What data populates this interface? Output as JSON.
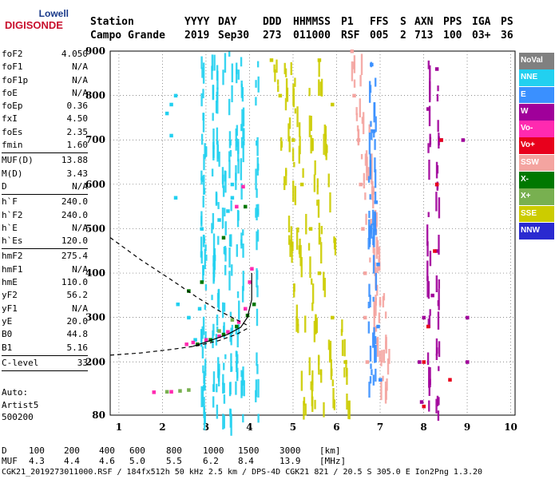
{
  "logo": {
    "top": "Lowell",
    "bottom": "DIGISONDE"
  },
  "header": {
    "labels": [
      "Station",
      "YYYY",
      "DAY",
      "DDD",
      "HHMMSS",
      "P1",
      "FFS",
      "S",
      "AXN",
      "PPS",
      "IGA",
      "PS"
    ],
    "values": [
      "Campo Grande",
      "2019",
      "Sep30",
      "273",
      "011000",
      "RSF",
      "005",
      "2",
      "713",
      "100",
      "03+",
      "36"
    ]
  },
  "params": [
    {
      "group": [
        [
          "foF2",
          "4.050"
        ],
        [
          "foF1",
          "N/A"
        ],
        [
          "foF1p",
          "N/A"
        ],
        [
          "foE",
          "N/A"
        ],
        [
          "foEp",
          "0.36"
        ],
        [
          "fxI",
          "4.50"
        ],
        [
          "foEs",
          "2.35"
        ],
        [
          "fmin",
          "1.60"
        ]
      ]
    },
    {
      "group": [
        [
          "MUF(D)",
          "13.88"
        ],
        [
          "M(D)",
          "3.43"
        ],
        [
          "D",
          "N/A"
        ]
      ]
    },
    {
      "group": [
        [
          "h`F",
          "240.0"
        ],
        [
          "h`F2",
          "240.0"
        ],
        [
          "h`E",
          "N/A"
        ],
        [
          "h`Es",
          "120.0"
        ]
      ]
    },
    {
      "group": [
        [
          "hmF2",
          "275.4"
        ],
        [
          "hmF1",
          "N/A"
        ],
        [
          "hmE",
          "110.0"
        ],
        [
          "yF2",
          "56.2"
        ],
        [
          "yF1",
          "N/A"
        ],
        [
          "yE",
          "20.0"
        ],
        [
          "B0",
          "44.8"
        ],
        [
          "B1",
          "5.16"
        ]
      ]
    },
    {
      "group": [
        [
          "C-level",
          "33"
        ]
      ]
    }
  ],
  "auto": [
    "Auto:",
    "Artist5",
    "500200"
  ],
  "legend": [
    {
      "label": "NoVal",
      "color": "#808080"
    },
    {
      "label": "NNE",
      "color": "#22d0f0"
    },
    {
      "label": "E",
      "color": "#3a90ff"
    },
    {
      "label": "W",
      "color": "#a0009a"
    },
    {
      "label": "Vo-",
      "color": "#ff2ab0"
    },
    {
      "label": "Vo+",
      "color": "#e8001c"
    },
    {
      "label": "SSW",
      "color": "#f4a4a0"
    },
    {
      "label": "X-",
      "color": "#007800"
    },
    {
      "label": "X+",
      "color": "#78b050"
    },
    {
      "label": "SSE",
      "color": "#cccc00"
    },
    {
      "label": "NNW",
      "color": "#2a2ad0"
    }
  ],
  "bottom": {
    "d_label": "D",
    "d_values": [
      "100",
      "200",
      "400",
      "600",
      "800",
      "1000",
      "1500",
      "3000",
      "[km]"
    ],
    "muf_label": "MUF",
    "muf_values": [
      "4.3",
      "4.4",
      "4.6",
      "5.0",
      "5.5",
      "6.2",
      "8.4",
      "13.9",
      "[MHz]"
    ]
  },
  "footer": "CGK21_2019273011000.RSF / 184fx512h 50 kHz 2.5 km / DPS-4D CGK21 821 / 20.5 S 305.0 E Ion2Png 1.3.20",
  "chart_data": {
    "type": "scatter",
    "title": "",
    "xlabel": "",
    "ylabel": "",
    "xlim": [
      0.8,
      10.1
    ],
    "ylim": [
      80,
      900
    ],
    "x_ticks": [
      1,
      2,
      3,
      4,
      5,
      6,
      7,
      8,
      9,
      10
    ],
    "y_ticks": [
      80,
      200,
      300,
      400,
      500,
      600,
      700,
      800,
      900
    ],
    "grid": true,
    "legend_placement": "right",
    "series": [
      {
        "name": "NNE",
        "points_mhz_km": [
          [
            2.75,
            250
          ],
          [
            2.85,
            320
          ],
          [
            2.9,
            500
          ],
          [
            3.3,
            520
          ],
          [
            3.5,
            540
          ],
          [
            3.6,
            570
          ],
          [
            2.3,
            800
          ],
          [
            2.2,
            780
          ],
          [
            2.1,
            760
          ],
          [
            2.2,
            710
          ],
          [
            2.3,
            570
          ],
          [
            2.35,
            330
          ],
          [
            2.6,
            300
          ],
          [
            3.6,
            600
          ]
        ]
      },
      {
        "name": "Vo-",
        "points_mhz_km": [
          [
            2.55,
            240
          ],
          [
            2.7,
            244
          ],
          [
            3.0,
            250
          ],
          [
            3.3,
            258
          ],
          [
            3.5,
            268
          ],
          [
            3.75,
            290
          ],
          [
            3.9,
            320
          ],
          [
            4.0,
            380
          ],
          [
            4.05,
            410
          ],
          [
            3.7,
            550
          ],
          [
            3.85,
            595
          ],
          [
            1.8,
            132
          ],
          [
            2.2,
            133
          ]
        ]
      },
      {
        "name": "X-",
        "points_mhz_km": [
          [
            2.8,
            240
          ],
          [
            3.1,
            250
          ],
          [
            3.4,
            262
          ],
          [
            3.7,
            280
          ],
          [
            3.95,
            305
          ],
          [
            4.1,
            330
          ],
          [
            2.6,
            360
          ],
          [
            2.9,
            380
          ],
          [
            3.4,
            480
          ],
          [
            3.9,
            550
          ]
        ]
      },
      {
        "name": "X+",
        "points_mhz_km": [
          [
            2.1,
            133
          ],
          [
            2.4,
            135
          ],
          [
            2.6,
            137
          ],
          [
            3.3,
            270
          ],
          [
            3.6,
            295
          ]
        ]
      },
      {
        "name": "SSE",
        "points_mhz_km": [
          [
            4.5,
            880
          ],
          [
            4.7,
            800
          ],
          [
            5.0,
            700
          ],
          [
            5.2,
            600
          ],
          [
            5.4,
            500
          ],
          [
            5.6,
            400
          ],
          [
            5.9,
            300
          ],
          [
            6.2,
            200
          ],
          [
            5.6,
            880
          ],
          [
            5.9,
            780
          ]
        ]
      },
      {
        "name": "SSW",
        "points_mhz_km": [
          [
            6.35,
            900
          ],
          [
            6.4,
            800
          ],
          [
            6.5,
            700
          ],
          [
            6.55,
            600
          ],
          [
            6.6,
            500
          ],
          [
            6.65,
            400
          ],
          [
            6.65,
            300
          ],
          [
            6.7,
            200
          ]
        ]
      },
      {
        "name": "E",
        "points_mhz_km": [
          [
            6.8,
            870
          ],
          [
            6.85,
            720
          ],
          [
            6.9,
            560
          ],
          [
            6.95,
            420
          ],
          [
            6.95,
            280
          ],
          [
            7.0,
            160
          ]
        ]
      },
      {
        "name": "W",
        "points_mhz_km": [
          [
            8.3,
            860
          ],
          [
            8.1,
            770
          ],
          [
            8.4,
            700
          ],
          [
            8.3,
            600
          ],
          [
            8.3,
            450
          ],
          [
            8.2,
            350
          ],
          [
            8.0,
            300
          ],
          [
            7.9,
            200
          ],
          [
            7.95,
            110
          ],
          [
            8.9,
            700
          ],
          [
            9.0,
            300
          ],
          [
            9.0,
            200
          ]
        ]
      },
      {
        "name": "Vo+",
        "points_mhz_km": [
          [
            8.4,
            700
          ],
          [
            8.3,
            600
          ],
          [
            8.25,
            450
          ],
          [
            8.1,
            280
          ],
          [
            8.0,
            200
          ],
          [
            8.0,
            100
          ],
          [
            8.6,
            160
          ]
        ]
      }
    ],
    "curves": [
      {
        "name": "profile",
        "points_mhz_km": [
          [
            2.7,
            235
          ],
          [
            3.1,
            248
          ],
          [
            3.5,
            262
          ],
          [
            3.8,
            278
          ],
          [
            3.95,
            300
          ],
          [
            4.05,
            340
          ],
          [
            4.05,
            400
          ]
        ]
      },
      {
        "name": "model-upper",
        "points_mhz_km": [
          [
            0.8,
            480
          ],
          [
            1.5,
            430
          ],
          [
            2.2,
            385
          ],
          [
            2.8,
            345
          ],
          [
            3.3,
            315
          ],
          [
            3.7,
            295
          ],
          [
            4.0,
            280
          ]
        ]
      },
      {
        "name": "model-lower",
        "points_mhz_km": [
          [
            0.8,
            215
          ],
          [
            1.5,
            220
          ],
          [
            2.2,
            228
          ],
          [
            2.8,
            236
          ],
          [
            3.3,
            248
          ],
          [
            3.7,
            262
          ],
          [
            4.0,
            278
          ]
        ]
      }
    ]
  }
}
